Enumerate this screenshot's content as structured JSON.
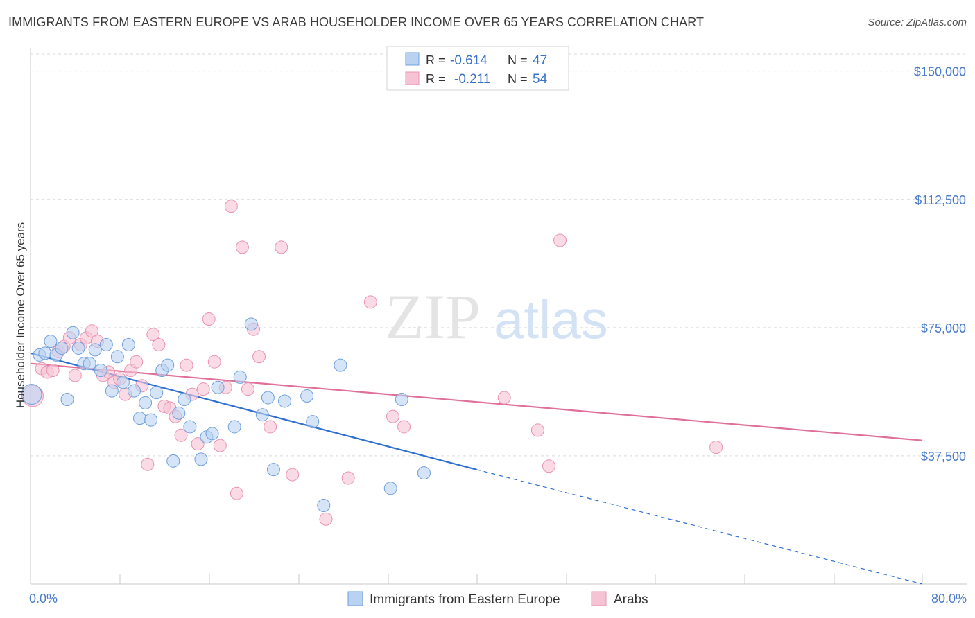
{
  "title": "IMMIGRANTS FROM EASTERN EUROPE VS ARAB HOUSEHOLDER INCOME OVER 65 YEARS CORRELATION CHART",
  "source": "Source: ZipAtlas.com",
  "watermark": {
    "zip": "ZIP",
    "atlas": "atlas"
  },
  "colors": {
    "blue_fill": "#b9d2f2",
    "blue_stroke": "#6f9fdc",
    "blue_line": "#2f6fd0",
    "pink_fill": "#f6c3d4",
    "pink_stroke": "#e993b0",
    "pink_line": "#e0709a",
    "grid": "#d9d9d9",
    "tick_label": "#4a7cc9"
  },
  "legend": {
    "rows": [
      {
        "r_label": "R =",
        "r_value": "-0.614",
        "n_label": "N =",
        "n_value": "47"
      },
      {
        "r_label": "R =",
        "r_value": "-0.211",
        "n_label": "N =",
        "n_value": "54"
      }
    ]
  },
  "chart_data": {
    "type": "scatter",
    "title": "IMMIGRANTS FROM EASTERN EUROPE VS ARAB HOUSEHOLDER INCOME OVER 65 YEARS CORRELATION CHART",
    "xlabel": "",
    "ylabel": "Householder Income Over 65 years",
    "xlim": [
      0,
      80
    ],
    "ylim": [
      0,
      155000
    ],
    "x_tick_labels": {
      "left": "0.0%",
      "right": "80.0%"
    },
    "y_ticks": [
      {
        "value": 37500,
        "label": "$37,500"
      },
      {
        "value": 75000,
        "label": "$75,000"
      },
      {
        "value": 112500,
        "label": "$112,500"
      },
      {
        "value": 150000,
        "label": "$150,000"
      }
    ],
    "series": [
      {
        "name": "Immigrants from Eastern Europe",
        "color": "blue",
        "trend": {
          "x0": 0,
          "y0": 67500,
          "x1": 40,
          "y1": 33500,
          "dash_x1": 80,
          "dash_y1": 0
        },
        "points": [
          [
            0.1,
            55500,
            1.6
          ],
          [
            0.8,
            67000,
            1
          ],
          [
            1.3,
            67500,
            1
          ],
          [
            1.8,
            71000,
            1
          ],
          [
            2.3,
            67000,
            1
          ],
          [
            2.8,
            69000,
            1
          ],
          [
            3.3,
            54000,
            1
          ],
          [
            3.8,
            73500,
            1
          ],
          [
            4.3,
            69000,
            1
          ],
          [
            4.8,
            64500,
            1
          ],
          [
            5.3,
            64500,
            1
          ],
          [
            5.8,
            68500,
            1
          ],
          [
            6.3,
            62500,
            1
          ],
          [
            6.8,
            70000,
            1
          ],
          [
            7.3,
            56500,
            1
          ],
          [
            7.8,
            66500,
            1
          ],
          [
            8.3,
            59000,
            1
          ],
          [
            8.8,
            70000,
            1
          ],
          [
            9.3,
            56500,
            1
          ],
          [
            9.8,
            48500,
            1
          ],
          [
            10.3,
            53000,
            1
          ],
          [
            10.8,
            48000,
            1
          ],
          [
            11.3,
            56000,
            1
          ],
          [
            11.8,
            62500,
            1
          ],
          [
            12.3,
            64000,
            1
          ],
          [
            12.8,
            36000,
            1
          ],
          [
            13.3,
            50000,
            1
          ],
          [
            13.8,
            54000,
            1
          ],
          [
            14.3,
            46000,
            1
          ],
          [
            15.3,
            36500,
            1
          ],
          [
            15.8,
            43000,
            1
          ],
          [
            16.3,
            44000,
            1
          ],
          [
            16.8,
            57500,
            1
          ],
          [
            18.3,
            46000,
            1
          ],
          [
            18.8,
            60500,
            1
          ],
          [
            19.8,
            76000,
            1
          ],
          [
            20.8,
            49500,
            1
          ],
          [
            21.3,
            54500,
            1
          ],
          [
            21.8,
            33500,
            1
          ],
          [
            22.8,
            53500,
            1
          ],
          [
            24.8,
            55000,
            1
          ],
          [
            25.3,
            47500,
            1
          ],
          [
            26.3,
            23000,
            1
          ],
          [
            27.8,
            64000,
            1
          ],
          [
            32.3,
            28000,
            1
          ],
          [
            33.3,
            54000,
            1
          ],
          [
            35.3,
            32500,
            1
          ]
        ]
      },
      {
        "name": "Arabs",
        "color": "pink",
        "trend": {
          "x0": 0,
          "y0": 64500,
          "x1": 80,
          "y1": 42000
        },
        "points": [
          [
            0.2,
            55000,
            1.7
          ],
          [
            1.0,
            63000,
            1
          ],
          [
            1.5,
            62000,
            1
          ],
          [
            2.0,
            62500,
            1
          ],
          [
            2.5,
            68000,
            1
          ],
          [
            3.0,
            69500,
            1
          ],
          [
            3.5,
            72000,
            1
          ],
          [
            4.0,
            61000,
            1
          ],
          [
            4.5,
            70000,
            1
          ],
          [
            5.0,
            72000,
            1
          ],
          [
            5.5,
            74000,
            1
          ],
          [
            6.0,
            71000,
            1
          ],
          [
            6.5,
            61000,
            1
          ],
          [
            7.0,
            62000,
            1
          ],
          [
            7.5,
            59000,
            1
          ],
          [
            8.0,
            60000,
            1
          ],
          [
            8.5,
            55500,
            1
          ],
          [
            9.0,
            62500,
            1
          ],
          [
            9.5,
            65000,
            1
          ],
          [
            10.0,
            58000,
            1
          ],
          [
            10.5,
            35000,
            1
          ],
          [
            11.0,
            73000,
            1
          ],
          [
            11.5,
            70000,
            1
          ],
          [
            12.0,
            52000,
            1
          ],
          [
            12.5,
            51500,
            1
          ],
          [
            13.0,
            49000,
            1
          ],
          [
            13.5,
            43500,
            1
          ],
          [
            14.0,
            64000,
            1
          ],
          [
            14.5,
            55500,
            1
          ],
          [
            15.0,
            41000,
            1
          ],
          [
            15.5,
            57000,
            1
          ],
          [
            16.0,
            77500,
            1
          ],
          [
            16.5,
            65000,
            1
          ],
          [
            17.0,
            40500,
            1
          ],
          [
            17.5,
            57500,
            1
          ],
          [
            18.0,
            110500,
            1
          ],
          [
            18.5,
            26500,
            1
          ],
          [
            19.0,
            98500,
            1
          ],
          [
            19.5,
            57000,
            1
          ],
          [
            20.0,
            74500,
            1
          ],
          [
            20.5,
            66500,
            1
          ],
          [
            21.5,
            46000,
            1
          ],
          [
            22.5,
            98500,
            1
          ],
          [
            23.5,
            32000,
            1
          ],
          [
            26.5,
            19000,
            1
          ],
          [
            28.5,
            31000,
            1
          ],
          [
            30.5,
            82500,
            1
          ],
          [
            32.5,
            49000,
            1
          ],
          [
            33.5,
            46000,
            1
          ],
          [
            42.5,
            54500,
            1
          ],
          [
            45.5,
            45000,
            1
          ],
          [
            46.5,
            34500,
            1
          ],
          [
            47.5,
            100500,
            1
          ],
          [
            61.5,
            40000,
            1
          ]
        ]
      }
    ],
    "legend_position": "top-center"
  }
}
